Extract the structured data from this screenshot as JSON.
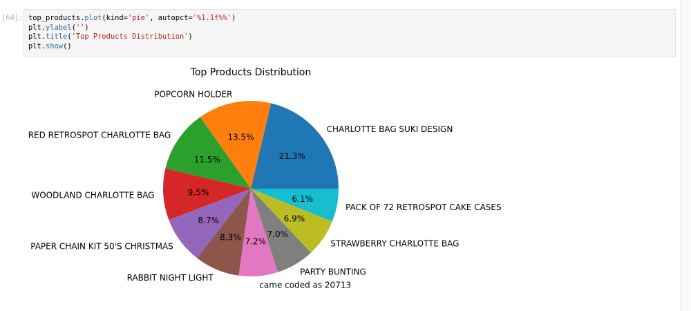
{
  "cell": {
    "prompt": "[64]:",
    "code_lines": [
      [
        {
          "t": "top_products.",
          "c": ""
        },
        {
          "t": "plot",
          "c": "fn"
        },
        {
          "t": "(kind=",
          "c": ""
        },
        {
          "t": "'pie'",
          "c": "str"
        },
        {
          "t": ", autopct=",
          "c": ""
        },
        {
          "t": "'%1.1f%%'",
          "c": "str"
        },
        {
          "t": ")",
          "c": ""
        }
      ],
      [
        {
          "t": "plt.",
          "c": ""
        },
        {
          "t": "ylabel",
          "c": "fn"
        },
        {
          "t": "(",
          "c": ""
        },
        {
          "t": "''",
          "c": "str"
        },
        {
          "t": ")",
          "c": ""
        }
      ],
      [
        {
          "t": "plt.",
          "c": ""
        },
        {
          "t": "title",
          "c": "fn"
        },
        {
          "t": "(",
          "c": ""
        },
        {
          "t": "'Top Products Distribution'",
          "c": "str"
        },
        {
          "t": ")",
          "c": ""
        }
      ],
      [
        {
          "t": "plt.",
          "c": ""
        },
        {
          "t": "show",
          "c": "fn"
        },
        {
          "t": "()",
          "c": ""
        }
      ]
    ]
  },
  "chart_data": {
    "type": "pie",
    "title": "Top Products Distribution",
    "ylabel": "",
    "labels": [
      "CHARLOTTE BAG SUKI DESIGN",
      "POPCORN HOLDER",
      "RED RETROSPOT CHARLOTTE BAG",
      "WOODLAND CHARLOTTE BAG",
      "PAPER CHAIN KIT 50'S CHRISTMAS",
      "RABBIT NIGHT LIGHT",
      "came coded as 20713",
      "PARTY BUNTING",
      "STRAWBERRY CHARLOTTE BAG",
      "PACK OF 72 RETROSPOT CAKE CASES"
    ],
    "values": [
      21.3,
      13.5,
      11.5,
      9.5,
      8.7,
      8.3,
      7.2,
      7.0,
      6.9,
      6.1
    ],
    "pct_labels": [
      "21.3%",
      "13.5%",
      "11.5%",
      "9.5%",
      "8.7%",
      "8.3%",
      "7.2%",
      "7.0%",
      "6.9%",
      "6.1%"
    ],
    "colors": [
      "#1f77b4",
      "#ff7f0e",
      "#2ca02c",
      "#d62728",
      "#9467bd",
      "#8c564b",
      "#e377c2",
      "#7f7f7f",
      "#bcbd22",
      "#17becf"
    ],
    "start_angle_deg": 0,
    "direction": "counterclockwise"
  }
}
